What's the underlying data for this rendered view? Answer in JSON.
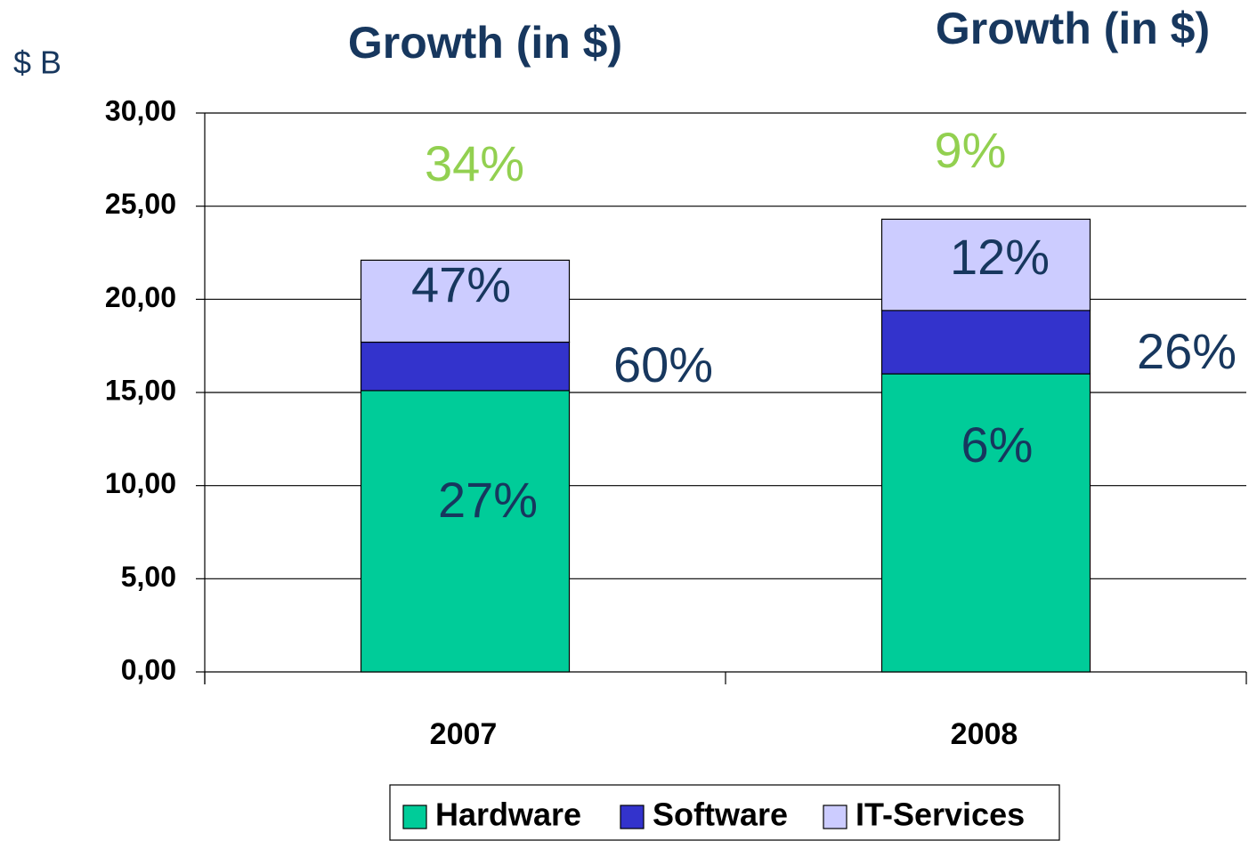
{
  "chart_data": {
    "type": "stacked_bar",
    "titles": [
      "Growth (in $)",
      "Growth (in $)"
    ],
    "y_label": "$ B",
    "categories": [
      "2007",
      "2008"
    ],
    "series": [
      {
        "name": "Hardware",
        "color": "#00cc99",
        "values": [
          15.1,
          16.0
        ]
      },
      {
        "name": "Software",
        "color": "#3333cc",
        "values": [
          2.6,
          3.4
        ]
      },
      {
        "name": "IT-Services",
        "color": "#ccccff",
        "values": [
          4.4,
          4.9
        ]
      }
    ],
    "ylim": [
      0,
      30
    ],
    "yticks": [
      {
        "value": 0,
        "label": "0,00"
      },
      {
        "value": 5,
        "label": "5,00"
      },
      {
        "value": 10,
        "label": "10,00"
      },
      {
        "value": 15,
        "label": "15,00"
      },
      {
        "value": 20,
        "label": "20,00"
      },
      {
        "value": 25,
        "label": "25,00"
      },
      {
        "value": 30,
        "label": "30,00"
      }
    ],
    "grid": true,
    "annotations": [
      {
        "text": "34%",
        "color": "#92d050"
      },
      {
        "text": "9%",
        "color": "#92d050"
      },
      {
        "text": "47%",
        "color": "#17375e"
      },
      {
        "text": "12%",
        "color": "#17375e"
      },
      {
        "text": "60%",
        "color": "#17375e"
      },
      {
        "text": "26%",
        "color": "#17375e"
      },
      {
        "text": "27%",
        "color": "#17375e"
      },
      {
        "text": "6%",
        "color": "#17375e"
      }
    ],
    "legend": "bottom"
  }
}
